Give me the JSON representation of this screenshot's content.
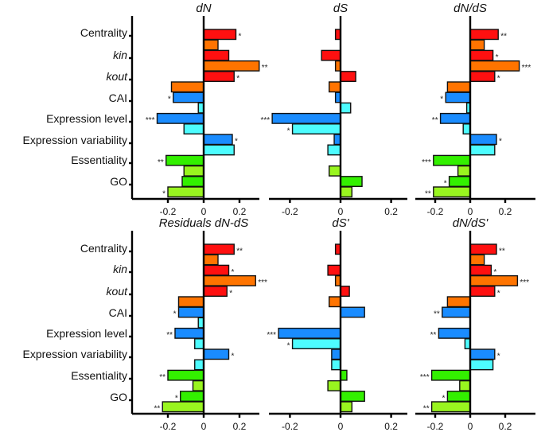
{
  "chart_data": {
    "type": "bar",
    "orientation": "horizontal",
    "categories": [
      "Centrality",
      "kin",
      "kout",
      "CAI",
      "Expression level",
      "Expression variability",
      "Essentiality",
      "GO"
    ],
    "italic_categories": [
      "kin",
      "kout"
    ],
    "colors": {
      "Centrality": [
        "#ff1010",
        "#ff7400"
      ],
      "kin": [
        "#ff1010",
        "#ff7400"
      ],
      "kout": [
        "#ff1010",
        "#ff7400"
      ],
      "CAI": [
        "#1a8cff",
        "#4dfcff"
      ],
      "Expression level": [
        "#1a8cff",
        "#4dfcff"
      ],
      "Expression variability": [
        "#1a8cff",
        "#4dfcff"
      ],
      "Essentiality": [
        "#33f000",
        "#99f51f"
      ],
      "GO": [
        "#33f000",
        "#99f51f"
      ]
    },
    "xticks": [
      -0.2,
      0,
      0.2
    ],
    "xtick_labels": [
      "-0.2",
      "0",
      "0.2"
    ],
    "panels": [
      {
        "title": "dN",
        "xlim": [
          -0.4,
          0.33
        ],
        "values": [
          [
            0.18,
            0.08
          ],
          [
            0.14,
            0.31
          ],
          [
            0.17,
            -0.18
          ],
          [
            -0.17,
            -0.03
          ],
          [
            -0.26,
            -0.11
          ],
          [
            0.16,
            0.17
          ],
          [
            -0.21,
            -0.11
          ],
          [
            -0.12,
            -0.2
          ]
        ],
        "sig": [
          [
            "*",
            ""
          ],
          [
            "",
            "**"
          ],
          [
            "*",
            ""
          ],
          [
            "*",
            ""
          ],
          [
            "***",
            ""
          ],
          [
            "*",
            ""
          ],
          [
            "**",
            ""
          ],
          [
            "",
            "*"
          ]
        ]
      },
      {
        "title": "dS",
        "xlim": [
          -0.29,
          0.27
        ],
        "values": [
          [
            -0.02,
            0.0
          ],
          [
            -0.075,
            -0.02
          ],
          [
            0.06,
            -0.045
          ],
          [
            -0.02,
            0.04
          ],
          [
            -0.27,
            -0.19
          ],
          [
            -0.025,
            -0.05
          ],
          [
            0.0,
            -0.045
          ],
          [
            0.085,
            0.045
          ]
        ],
        "sig": [
          [
            "",
            ""
          ],
          [
            "",
            ""
          ],
          [
            "",
            ""
          ],
          [
            "",
            ""
          ],
          [
            "***",
            "*"
          ],
          [
            "",
            ""
          ],
          [
            "",
            ""
          ],
          [
            "",
            ""
          ]
        ]
      },
      {
        "title": "dN/dS",
        "xlim": [
          -0.32,
          0.37
        ],
        "values": [
          [
            0.16,
            0.08
          ],
          [
            0.13,
            0.28
          ],
          [
            0.14,
            -0.13
          ],
          [
            -0.14,
            -0.02
          ],
          [
            -0.17,
            -0.04
          ],
          [
            0.15,
            0.14
          ],
          [
            -0.21,
            -0.07
          ],
          [
            -0.12,
            -0.21
          ]
        ],
        "sig": [
          [
            "**",
            ""
          ],
          [
            "*",
            "***"
          ],
          [
            "*",
            ""
          ],
          [
            "*",
            ""
          ],
          [
            "**",
            ""
          ],
          [
            "*",
            ""
          ],
          [
            "***",
            ""
          ],
          [
            "*",
            "**"
          ]
        ]
      },
      {
        "title": "Residuals dN-dS",
        "xlim": [
          -0.4,
          0.31
        ],
        "values": [
          [
            0.17,
            0.08
          ],
          [
            0.14,
            0.29
          ],
          [
            0.13,
            -0.14
          ],
          [
            -0.14,
            -0.03
          ],
          [
            -0.16,
            -0.05
          ],
          [
            0.14,
            -0.05
          ],
          [
            -0.2,
            -0.06
          ],
          [
            -0.13,
            -0.23
          ]
        ],
        "sig": [
          [
            "**",
            ""
          ],
          [
            "*",
            "***"
          ],
          [
            "*",
            ""
          ],
          [
            "*",
            ""
          ],
          [
            "**",
            ""
          ],
          [
            "*",
            ""
          ],
          [
            "**",
            ""
          ],
          [
            "*",
            "**"
          ]
        ]
      },
      {
        "title": "dS'",
        "xlim": [
          -0.29,
          0.27
        ],
        "values": [
          [
            -0.02,
            0.0
          ],
          [
            -0.05,
            -0.02
          ],
          [
            0.035,
            -0.045
          ],
          [
            0.095,
            0.0
          ],
          [
            -0.245,
            -0.19
          ],
          [
            -0.035,
            -0.035
          ],
          [
            0.025,
            -0.05
          ],
          [
            0.095,
            0.045
          ]
        ],
        "sig": [
          [
            "",
            ""
          ],
          [
            "",
            ""
          ],
          [
            "",
            ""
          ],
          [
            "",
            ""
          ],
          [
            "***",
            "*"
          ],
          [
            "",
            ""
          ],
          [
            "",
            ""
          ],
          [
            "",
            ""
          ]
        ]
      },
      {
        "title": "dN/dS'",
        "xlim": [
          -0.32,
          0.37
        ],
        "values": [
          [
            0.15,
            0.08
          ],
          [
            0.12,
            0.27
          ],
          [
            0.14,
            -0.13
          ],
          [
            -0.16,
            0.0
          ],
          [
            -0.18,
            -0.03
          ],
          [
            0.14,
            0.13
          ],
          [
            -0.22,
            -0.06
          ],
          [
            -0.13,
            -0.22
          ]
        ],
        "sig": [
          [
            "**",
            ""
          ],
          [
            "*",
            "***"
          ],
          [
            "*",
            ""
          ],
          [
            "**",
            ""
          ],
          [
            "**",
            ""
          ],
          [
            "*",
            ""
          ],
          [
            "***",
            ""
          ],
          [
            "*",
            "**"
          ]
        ]
      }
    ],
    "grid": false,
    "legend": "none"
  }
}
